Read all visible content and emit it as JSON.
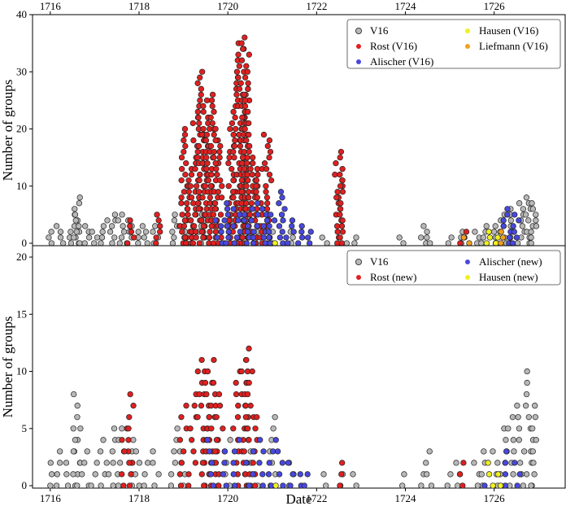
{
  "chart_data": [
    {
      "type": "scatter",
      "panel": "top",
      "ylabel": "Number of groups",
      "xlim": [
        1715.6,
        1727.6
      ],
      "ylim": [
        0,
        40
      ],
      "x_ticks": [
        1716,
        1718,
        1720,
        1722,
        1724,
        1726
      ],
      "y_ticks": [
        0,
        10,
        20,
        30,
        40
      ],
      "x_tick_position": "top",
      "legend": {
        "placement": "top-right",
        "columns": 2,
        "entries": [
          "V16",
          "Hausen (V16)",
          "Rost (V16)",
          "Liefmann (V16)",
          "Alischer (V16)"
        ]
      },
      "colors": {
        "V16": "#b8b8b8",
        "Rost (V16)": "#e02020",
        "Alischer (V16)": "#4848e0",
        "Hausen (V16)": "#f0f020",
        "Liefmann (V16)": "#f0a020"
      },
      "series": [
        {
          "name": "V16",
          "x": [
            1716.0,
            1716.2,
            1716.4,
            1716.6,
            1716.6,
            1716.8,
            1717.0,
            1717.2,
            1717.4,
            1717.6,
            1717.8,
            1718.0,
            1718.2,
            1718.4,
            1718.8,
            1719.0,
            1719.2,
            1719.4,
            1720.0,
            1720.6,
            1721.0,
            1721.4,
            1722.2,
            1722.6,
            1722.9,
            1723.9,
            1724.4,
            1724.5,
            1725.0,
            1725.2,
            1725.6,
            1725.8,
            1726.0,
            1726.2,
            1726.4,
            1726.6,
            1726.8,
            1726.9
          ],
          "y": [
            2,
            3,
            2,
            8,
            5,
            3,
            2,
            4,
            5,
            5,
            4,
            3,
            2,
            3,
            5,
            3,
            4,
            5,
            4,
            3,
            2,
            2,
            1,
            1,
            1,
            1,
            1,
            3,
            1,
            2,
            2,
            3,
            3,
            5,
            6,
            7,
            8,
            7
          ]
        },
        {
          "name": "Rost (V16)",
          "x": [
            1719.0,
            1719.1,
            1719.2,
            1719.3,
            1719.4,
            1719.5,
            1719.6,
            1719.7,
            1719.8,
            1720.1,
            1720.2,
            1720.3,
            1720.4,
            1720.4,
            1720.5,
            1720.6,
            1720.7,
            1720.9,
            1722.5,
            1722.5,
            1718.4,
            1717.8,
            1725.3
          ],
          "y": [
            20,
            10,
            15,
            22,
            30,
            25,
            26,
            20,
            18,
            21,
            30,
            35,
            36,
            27,
            15,
            14,
            13,
            19,
            16,
            12,
            5,
            4,
            2
          ]
        },
        {
          "name": "Alischer (V16)",
          "x": [
            1719.8,
            1720.0,
            1720.2,
            1720.4,
            1720.6,
            1720.8,
            1721.0,
            1721.2,
            1721.4,
            1721.6,
            1721.8,
            1726.3,
            1726.5
          ],
          "y": [
            4,
            7,
            6,
            5,
            7,
            6,
            5,
            9,
            4,
            3,
            2,
            6,
            5
          ]
        },
        {
          "name": "Hausen (V16)",
          "x": [
            1721.0,
            1725.9,
            1726.1
          ],
          "y": [
            0,
            2,
            1
          ]
        },
        {
          "name": "Liefmann (V16)",
          "x": [
            1725.4,
            1726.2
          ],
          "y": [
            1,
            2
          ]
        }
      ]
    },
    {
      "type": "scatter",
      "panel": "bottom",
      "xlabel": "Date",
      "ylabel": "Number of groups",
      "xlim": [
        1715.6,
        1727.6
      ],
      "ylim": [
        0,
        21
      ],
      "x_ticks": [
        1716,
        1718,
        1720,
        1722,
        1724,
        1726
      ],
      "y_ticks": [
        0,
        5,
        10,
        15,
        20
      ],
      "legend": {
        "placement": "top-right",
        "columns": 2,
        "entries": [
          "V16",
          "Alischer (new)",
          "Rost (new)",
          "Hausen (new)"
        ]
      },
      "colors": {
        "V16": "#b8b8b8",
        "Rost (new)": "#e02020",
        "Alischer (new)": "#4848e0",
        "Hausen (new)": "#f0f020"
      },
      "series": [
        {
          "name": "V16",
          "x": [
            1716.0,
            1716.2,
            1716.4,
            1716.6,
            1716.6,
            1716.8,
            1717.0,
            1717.2,
            1717.4,
            1717.6,
            1717.8,
            1718.0,
            1718.2,
            1718.4,
            1718.8,
            1719.0,
            1720.0,
            1720.6,
            1721.0,
            1721.4,
            1722.2,
            1722.6,
            1722.9,
            1723.9,
            1724.4,
            1724.5,
            1725.0,
            1725.2,
            1725.6,
            1725.8,
            1726.0,
            1726.2,
            1726.4,
            1726.6,
            1726.8,
            1726.9
          ],
          "y": [
            2,
            3,
            2,
            8,
            5,
            3,
            2,
            4,
            5,
            5,
            4,
            3,
            2,
            3,
            5,
            3,
            4,
            3,
            6,
            2,
            1,
            1,
            1,
            1,
            1,
            3,
            1,
            2,
            2,
            3,
            3,
            5,
            6,
            7,
            10,
            7
          ]
        },
        {
          "name": "Rost (new)",
          "x": [
            1719.0,
            1719.2,
            1719.4,
            1719.5,
            1719.6,
            1719.7,
            1719.8,
            1720.2,
            1720.4,
            1720.4,
            1720.5,
            1720.6,
            1717.8,
            1717.7,
            1722.5,
            1725.3
          ],
          "y": [
            7,
            8,
            11,
            10,
            11,
            9,
            8,
            10,
            12,
            11,
            10,
            6,
            8,
            5,
            2,
            2
          ]
        },
        {
          "name": "Alischer (new)",
          "x": [
            1719.6,
            1719.9,
            1720.2,
            1720.5,
            1720.8,
            1721.0,
            1721.2,
            1721.4,
            1721.6,
            1721.8,
            1726.3,
            1726.5,
            1725.7
          ],
          "y": [
            4,
            3,
            4,
            3,
            4,
            4,
            3,
            2,
            1,
            1,
            3,
            2,
            0
          ]
        },
        {
          "name": "Hausen (new)",
          "x": [
            1721.0,
            1725.9,
            1726.1
          ],
          "y": [
            0,
            2,
            1
          ]
        }
      ]
    }
  ]
}
